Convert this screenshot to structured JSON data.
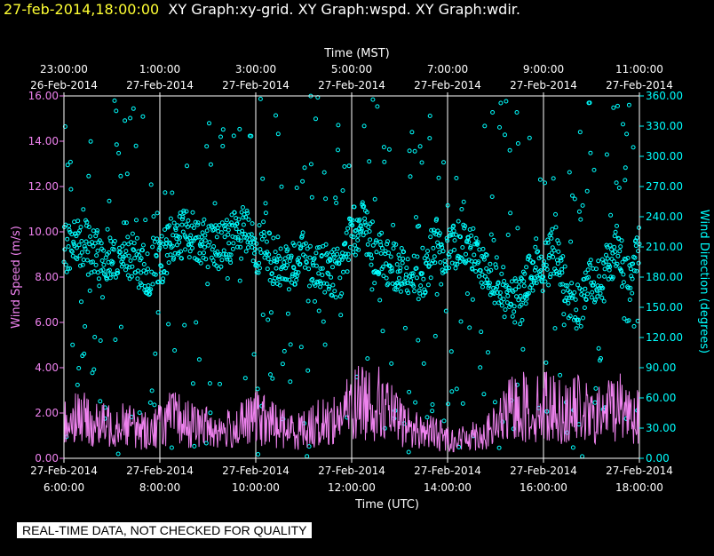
{
  "header": {
    "datetime": "27-feb-2014,18:00:00",
    "titles": "XY Graph:xy-grid.  XY Graph:wspd.  XY Graph:wdir."
  },
  "disclaimer": "REAL-TIME DATA, NOT CHECKED FOR QUALITY",
  "colors": {
    "speed": "#ee82ee",
    "direction": "#00ffff",
    "grid": "#ffffff",
    "text": "#ffffff"
  },
  "chart_data": {
    "type": "scatter",
    "title": "",
    "top_axis": {
      "label": "Time (MST)",
      "ticks": [
        {
          "x": 0,
          "time": "23:00:00",
          "date": "26-Feb-2014"
        },
        {
          "x": 2,
          "time": "1:00:00",
          "date": "27-Feb-2014"
        },
        {
          "x": 4,
          "time": "3:00:00",
          "date": "27-Feb-2014"
        },
        {
          "x": 6,
          "time": "5:00:00",
          "date": "27-Feb-2014"
        },
        {
          "x": 8,
          "time": "7:00:00",
          "date": "27-Feb-2014"
        },
        {
          "x": 10,
          "time": "9:00:00",
          "date": "27-Feb-2014"
        },
        {
          "x": 12,
          "time": "11:00:00",
          "date": "27-Feb-2014"
        }
      ]
    },
    "bottom_axis": {
      "label": "Time (UTC)",
      "ticks": [
        {
          "x": 0,
          "date": "27-Feb-2014",
          "time": "6:00:00"
        },
        {
          "x": 2,
          "date": "27-Feb-2014",
          "time": "8:00:00"
        },
        {
          "x": 4,
          "date": "27-Feb-2014",
          "time": "10:00:00"
        },
        {
          "x": 6,
          "date": "27-Feb-2014",
          "time": "12:00:00"
        },
        {
          "x": 8,
          "date": "27-Feb-2014",
          "time": "14:00:00"
        },
        {
          "x": 10,
          "date": "27-Feb-2014",
          "time": "16:00:00"
        },
        {
          "x": 12,
          "date": "27-Feb-2014",
          "time": "18:00:00"
        }
      ]
    },
    "xlim": [
      0,
      12
    ],
    "left_axis": {
      "label": "Wind Speed (m/s)",
      "ylim": [
        0,
        16
      ],
      "ticks": [
        "0.00",
        "2.00",
        "4.00",
        "6.00",
        "8.00",
        "10.00",
        "12.00",
        "14.00",
        "16.00"
      ]
    },
    "right_axis": {
      "label": "Wind Direction (degrees)",
      "ylim": [
        0,
        360
      ],
      "ticks": [
        "0.00",
        "30.00",
        "60.00",
        "90.00",
        "120.00",
        "150.00",
        "180.00",
        "210.00",
        "240.00",
        "270.00",
        "300.00",
        "330.00",
        "360.00"
      ]
    },
    "grid": "vertical",
    "series": [
      {
        "name": "wspd",
        "style": "line",
        "axis": "left",
        "x": [
          0,
          0.25,
          0.5,
          0.75,
          1,
          1.25,
          1.5,
          1.75,
          2,
          2.25,
          2.5,
          2.75,
          3,
          3.25,
          3.5,
          3.75,
          4,
          4.25,
          4.5,
          4.75,
          5,
          5.25,
          5.5,
          5.75,
          6,
          6.25,
          6.5,
          6.75,
          7,
          7.25,
          7.5,
          7.75,
          8,
          8.25,
          8.5,
          8.75,
          9,
          9.25,
          9.5,
          9.75,
          10,
          10.25,
          10.5,
          10.75,
          11,
          11.25,
          11.5,
          11.75,
          12
        ],
        "values": [
          1.5,
          2.0,
          1.6,
          1.4,
          1.5,
          1.7,
          1.3,
          1.2,
          1.5,
          1.8,
          1.6,
          1.4,
          1.4,
          1.2,
          1.3,
          1.5,
          1.8,
          1.6,
          1.4,
          1.2,
          1.3,
          1.5,
          1.6,
          1.8,
          2.3,
          2.6,
          2.5,
          2.1,
          1.6,
          1.3,
          1.2,
          1.1,
          0.9,
          0.8,
          1.1,
          1.0,
          1.4,
          2.0,
          2.4,
          2.0,
          2.4,
          2.2,
          1.9,
          2.3,
          1.7,
          2.0,
          2.4,
          2.2,
          1.9
        ]
      },
      {
        "name": "wdir",
        "style": "points",
        "axis": "right",
        "x": [
          0,
          0.25,
          0.5,
          0.75,
          1,
          1.25,
          1.5,
          1.75,
          2,
          2.25,
          2.5,
          2.75,
          3,
          3.25,
          3.5,
          3.75,
          4,
          4.25,
          4.5,
          4.75,
          5,
          5.25,
          5.5,
          5.75,
          6,
          6.25,
          6.5,
          6.75,
          7,
          7.25,
          7.5,
          7.75,
          8,
          8.25,
          8.5,
          8.75,
          9,
          9.25,
          9.5,
          9.75,
          10,
          10.25,
          10.5,
          10.75,
          11,
          11.25,
          11.5,
          11.75,
          12
        ],
        "values": [
          205,
          220,
          210,
          200,
          205,
          210,
          195,
          185,
          195,
          215,
          225,
          220,
          215,
          210,
          220,
          225,
          210,
          200,
          195,
          190,
          200,
          185,
          190,
          180,
          225,
          230,
          205,
          195,
          190,
          180,
          185,
          215,
          205,
          215,
          210,
          195,
          175,
          160,
          150,
          190,
          185,
          210,
          155,
          150,
          180,
          175,
          210,
          175,
          210
        ]
      }
    ]
  }
}
